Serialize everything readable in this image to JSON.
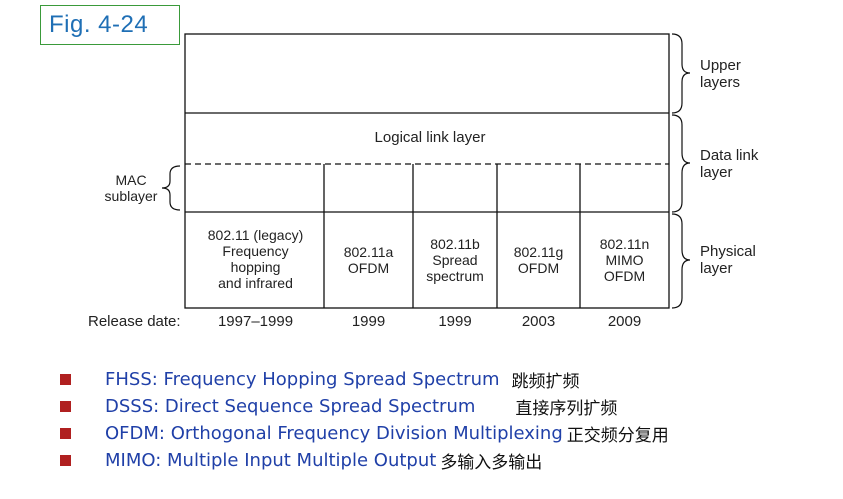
{
  "figure": {
    "label": "Fig. 4-24",
    "logical_link": "Logical link layer",
    "mac": [
      "MAC",
      "sublayer"
    ],
    "right_labels": {
      "upper": [
        "Upper",
        "layers"
      ],
      "data_link": [
        "Data link",
        "layer"
      ],
      "physical": [
        "Physical",
        "layer"
      ]
    },
    "phy_columns": [
      {
        "lines": [
          "802.11 (legacy)",
          "Frequency",
          "hopping",
          "and infrared"
        ],
        "date": "1997–1999"
      },
      {
        "lines": [
          "802.11a",
          "OFDM"
        ],
        "date": "1999"
      },
      {
        "lines": [
          "802.11b",
          "Spread",
          "spectrum"
        ],
        "date": "1999"
      },
      {
        "lines": [
          "802.11g",
          "OFDM"
        ],
        "date": "2003"
      },
      {
        "lines": [
          "802.11n",
          "MIMO",
          "OFDM"
        ],
        "date": "2009"
      }
    ],
    "release_label": "Release date:"
  },
  "bullets": [
    {
      "en": "FHSS: Frequency Hopping Spread Spectrum",
      "zh": "跳频扩频",
      "gap": 12
    },
    {
      "en": "DSSS: Direct Sequence Spread Spectrum",
      "zh": "直接序列扩频",
      "gap": 40
    },
    {
      "en": "OFDM: Orthogonal Frequency Division Multiplexing",
      "zh": "正交频分复用",
      "gap": 4
    },
    {
      "en": "MIMO: Multiple Input Multiple Output",
      "zh": "多输入多输出",
      "gap": 4
    }
  ],
  "colors": {
    "fig_border": "#3a9a3a",
    "fig_text": "#1f6fb5",
    "bullet_square": "#b02020",
    "bullet_text": "#2040a8"
  }
}
